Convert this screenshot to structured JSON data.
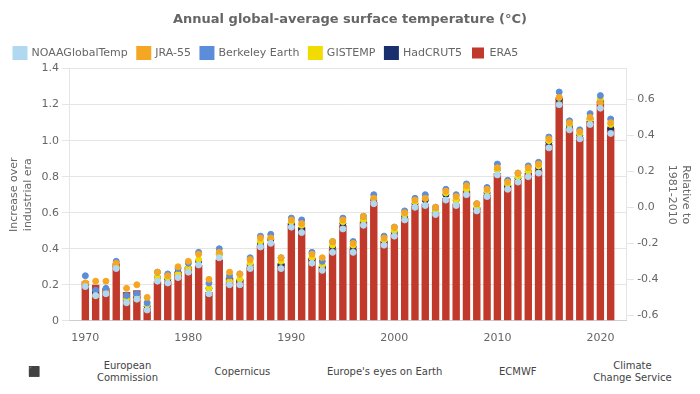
{
  "chart_data": {
    "type": "bar",
    "title": "Annual global-average surface temperature (°C)",
    "y_label": "Increase over\nindustrial era",
    "y2_label": "Relative to\n1981-2010",
    "x": [
      1970,
      1971,
      1972,
      1973,
      1974,
      1975,
      1976,
      1977,
      1978,
      1979,
      1980,
      1981,
      1982,
      1983,
      1984,
      1985,
      1986,
      1987,
      1988,
      1989,
      1990,
      1991,
      1992,
      1993,
      1994,
      1995,
      1996,
      1997,
      1998,
      1999,
      2000,
      2001,
      2002,
      2003,
      2004,
      2005,
      2006,
      2007,
      2008,
      2009,
      2010,
      2011,
      2012,
      2013,
      2014,
      2015,
      2016,
      2017,
      2018,
      2019,
      2020,
      2021
    ],
    "xlim": [
      1968.5,
      2022.5
    ],
    "xticks": [
      1970,
      {
        "value": 1975,
        "label": ""
      },
      1980,
      {
        "value": 1985,
        "label": ""
      },
      1990,
      {
        "value": 1995,
        "label": ""
      },
      2000,
      {
        "value": 2005,
        "label": ""
      },
      2010,
      {
        "value": 2015,
        "label": ""
      },
      2020
    ],
    "ylim": [
      0,
      1.4
    ],
    "yticks": [
      0,
      0.2,
      0.4,
      0.6,
      0.8,
      {
        "value": 1.0,
        "label": "1.0"
      },
      1.2,
      1.4
    ],
    "y2lim": [
      -0.63,
      0.77
    ],
    "y2ticks": [
      -0.6,
      -0.4,
      -0.2,
      {
        "value": 0.0,
        "label": "0.0"
      },
      0.2,
      0.4,
      0.6
    ],
    "grid": "y",
    "legend": "upper left",
    "series": [
      {
        "name": "ERA5",
        "type": "bar",
        "color": "#c0392b",
        "values": [
          0.22,
          0.2,
          0.18,
          0.32,
          0.16,
          0.17,
          0.07,
          0.22,
          0.22,
          0.27,
          0.3,
          0.31,
          0.16,
          0.34,
          0.24,
          0.23,
          0.3,
          0.42,
          0.43,
          0.32,
          0.54,
          0.52,
          0.35,
          0.3,
          0.4,
          0.53,
          0.4,
          0.55,
          0.66,
          0.44,
          0.48,
          0.57,
          0.64,
          0.65,
          0.6,
          0.68,
          0.65,
          0.72,
          0.63,
          0.7,
          0.82,
          0.75,
          0.78,
          0.82,
          0.84,
          0.98,
          1.24,
          1.07,
          1.02,
          1.11,
          1.22,
          1.07
        ]
      },
      {
        "name": "NOAAGlobalTemp",
        "type": "scatter",
        "marker": "circle",
        "color": "#b0d8f0",
        "values": [
          0.19,
          0.14,
          0.15,
          0.29,
          0.1,
          0.12,
          0.06,
          0.22,
          0.21,
          0.24,
          0.27,
          0.31,
          0.15,
          0.35,
          0.2,
          0.2,
          0.29,
          0.41,
          0.43,
          0.29,
          0.52,
          0.49,
          0.32,
          0.28,
          0.38,
          0.51,
          0.38,
          0.53,
          0.65,
          0.42,
          0.47,
          0.56,
          0.63,
          0.64,
          0.59,
          0.67,
          0.64,
          0.7,
          0.61,
          0.69,
          0.81,
          0.73,
          0.77,
          0.8,
          0.82,
          0.96,
          1.2,
          1.06,
          1.01,
          1.09,
          1.18,
          1.04
        ]
      },
      {
        "name": "JRA-55",
        "type": "scatter",
        "marker": "circle",
        "color": "#f5a623",
        "values": [
          0.21,
          0.22,
          0.22,
          0.32,
          0.18,
          0.2,
          0.13,
          0.27,
          0.25,
          0.3,
          0.33,
          0.37,
          0.23,
          0.38,
          0.27,
          0.26,
          0.34,
          0.46,
          0.46,
          0.35,
          0.56,
          0.54,
          0.37,
          0.35,
          0.44,
          0.56,
          0.43,
          0.58,
          0.68,
          0.46,
          0.52,
          0.6,
          0.67,
          0.68,
          0.63,
          0.72,
          0.69,
          0.75,
          0.65,
          0.73,
          0.85,
          0.77,
          0.82,
          0.85,
          0.87,
          1.01,
          1.24,
          1.1,
          1.05,
          1.13,
          1.21,
          1.1
        ]
      },
      {
        "name": "Berkeley Earth",
        "type": "scatter",
        "marker": "circle",
        "color": "#5b8dd9",
        "values": [
          0.25,
          0.17,
          0.18,
          0.33,
          0.14,
          0.15,
          0.1,
          0.27,
          0.26,
          0.29,
          0.32,
          0.38,
          0.21,
          0.4,
          0.25,
          0.26,
          0.35,
          0.47,
          0.48,
          0.35,
          0.57,
          0.56,
          0.38,
          0.33,
          0.44,
          0.57,
          0.44,
          0.58,
          0.7,
          0.47,
          0.52,
          0.61,
          0.68,
          0.7,
          0.63,
          0.73,
          0.7,
          0.76,
          0.65,
          0.74,
          0.87,
          0.78,
          0.82,
          0.86,
          0.88,
          1.02,
          1.27,
          1.11,
          1.06,
          1.15,
          1.25,
          1.12
        ]
      },
      {
        "name": "GISTEMP",
        "type": "scatter",
        "marker": "circle",
        "color": "#f0dc00",
        "values": [
          0.21,
          0.14,
          0.16,
          0.3,
          0.12,
          0.14,
          0.09,
          0.24,
          0.24,
          0.26,
          0.29,
          0.34,
          0.18,
          0.37,
          0.22,
          0.23,
          0.32,
          0.44,
          0.46,
          0.33,
          0.55,
          0.53,
          0.35,
          0.31,
          0.42,
          0.55,
          0.42,
          0.56,
          0.68,
          0.45,
          0.5,
          0.59,
          0.66,
          0.68,
          0.61,
          0.71,
          0.67,
          0.73,
          0.63,
          0.72,
          0.84,
          0.76,
          0.8,
          0.83,
          0.86,
          1.0,
          1.24,
          1.09,
          1.04,
          1.12,
          1.23,
          1.09
        ]
      },
      {
        "name": "HadCRUT5",
        "type": "scatter",
        "marker": "circle",
        "color": "#1a2f6e",
        "values": [
          0.2,
          0.15,
          0.16,
          0.3,
          0.12,
          0.13,
          0.08,
          0.24,
          0.23,
          0.27,
          0.29,
          0.33,
          0.18,
          0.37,
          0.22,
          0.22,
          0.31,
          0.43,
          0.45,
          0.31,
          0.54,
          0.51,
          0.34,
          0.3,
          0.41,
          0.54,
          0.41,
          0.56,
          0.67,
          0.44,
          0.49,
          0.58,
          0.65,
          0.67,
          0.61,
          0.7,
          0.67,
          0.73,
          0.62,
          0.71,
          0.84,
          0.75,
          0.79,
          0.83,
          0.85,
          0.99,
          1.23,
          1.08,
          1.03,
          1.12,
          1.22,
          1.07
        ]
      }
    ],
    "annotations": [
      {
        "text": "⬛"
      },
      {
        "text": "European\nCommission"
      },
      {
        "text": "Copernicus"
      },
      {
        "text": "Europe's eyes on Earth"
      },
      {
        "text": "ECMWF"
      },
      {
        "text": "Climate\nChange Service"
      }
    ]
  }
}
